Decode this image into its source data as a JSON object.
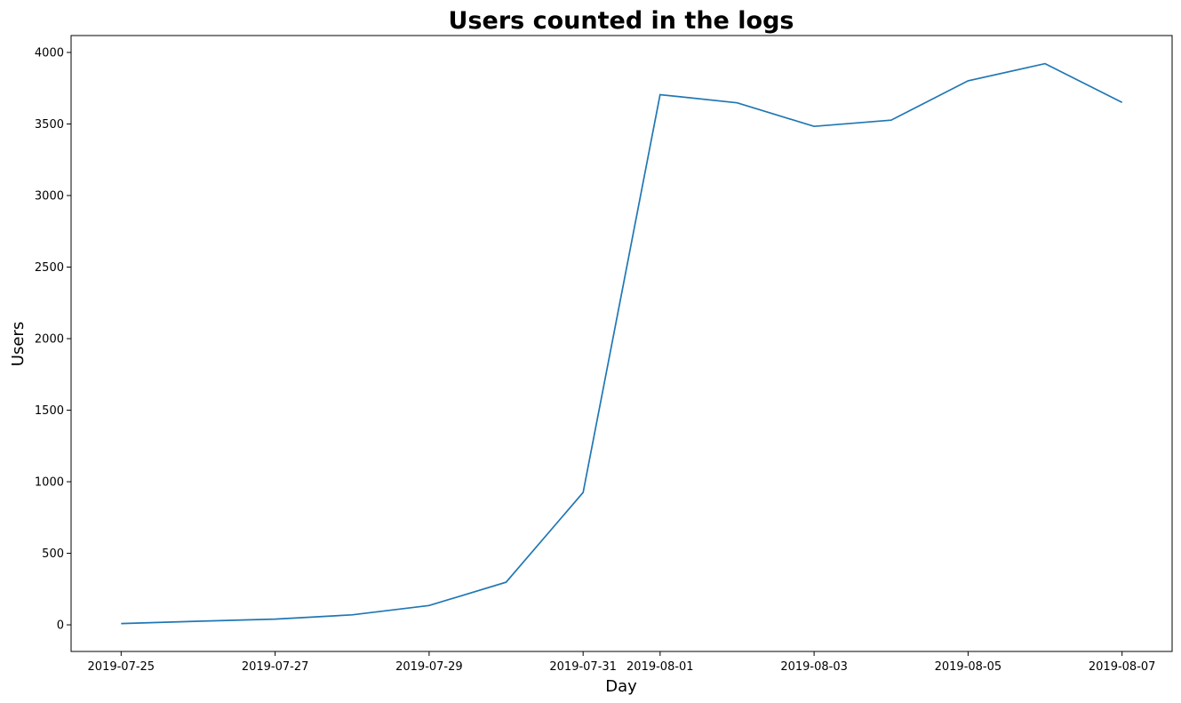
{
  "chart_data": {
    "type": "line",
    "title": "Users counted in the logs",
    "xlabel": "Day",
    "ylabel": "Users",
    "x": [
      "2019-07-25",
      "2019-07-26",
      "2019-07-27",
      "2019-07-28",
      "2019-07-29",
      "2019-07-30",
      "2019-07-31",
      "2019-08-01",
      "2019-08-02",
      "2019-08-03",
      "2019-08-04",
      "2019-08-05",
      "2019-08-06",
      "2019-08-07"
    ],
    "series": [
      {
        "values": [
          9,
          25,
          40,
          70,
          135,
          298,
          925,
          3705,
          3648,
          3483,
          3527,
          3802,
          3922,
          3651
        ],
        "color": "#1f77b4"
      }
    ],
    "xticks": [
      "2019-07-25",
      "2019-07-27",
      "2019-07-29",
      "2019-07-31",
      "2019-08-01",
      "2019-08-03",
      "2019-08-05",
      "2019-08-07"
    ],
    "yticks": [
      0,
      500,
      1000,
      1500,
      2000,
      2500,
      3000,
      3500,
      4000
    ],
    "xlim": [
      "2019-07-24T08:24",
      "2019-08-07T15:36"
    ],
    "ylim": [
      -186,
      4118
    ],
    "grid": false,
    "legend": "none"
  }
}
